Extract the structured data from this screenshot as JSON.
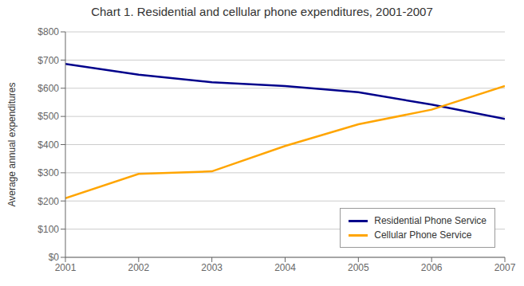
{
  "chart_data": {
    "type": "line",
    "title": "Chart 1. Residential and cellular phone expenditures, 2001-2007",
    "ylabel": "Average annual expenditures",
    "x": [
      2001,
      2002,
      2003,
      2004,
      2005,
      2006,
      2007
    ],
    "series": [
      {
        "name": "Residential Phone Service",
        "color": "#00008B",
        "values": [
          686,
          648,
          621,
          608,
          586,
          542,
          491
        ]
      },
      {
        "name": "Cellular Phone Service",
        "color": "#FFA500",
        "values": [
          210,
          296,
          305,
          395,
          472,
          524,
          608
        ]
      }
    ],
    "xlim": [
      2001,
      2007
    ],
    "xticks": [
      2001,
      2002,
      2003,
      2004,
      2005,
      2006,
      2007
    ],
    "ylim": [
      0,
      800
    ],
    "yticks": [
      {
        "value": 0,
        "label": "$0"
      },
      {
        "value": 100,
        "label": "$100"
      },
      {
        "value": 200,
        "label": "$200"
      },
      {
        "value": 300,
        "label": "$300"
      },
      {
        "value": 400,
        "label": "$400"
      },
      {
        "value": 500,
        "label": "$500"
      },
      {
        "value": 600,
        "label": "$600"
      },
      {
        "value": 700,
        "label": "$700"
      },
      {
        "value": 800,
        "label": "$800"
      }
    ],
    "grid": true,
    "legend": "lower right"
  }
}
